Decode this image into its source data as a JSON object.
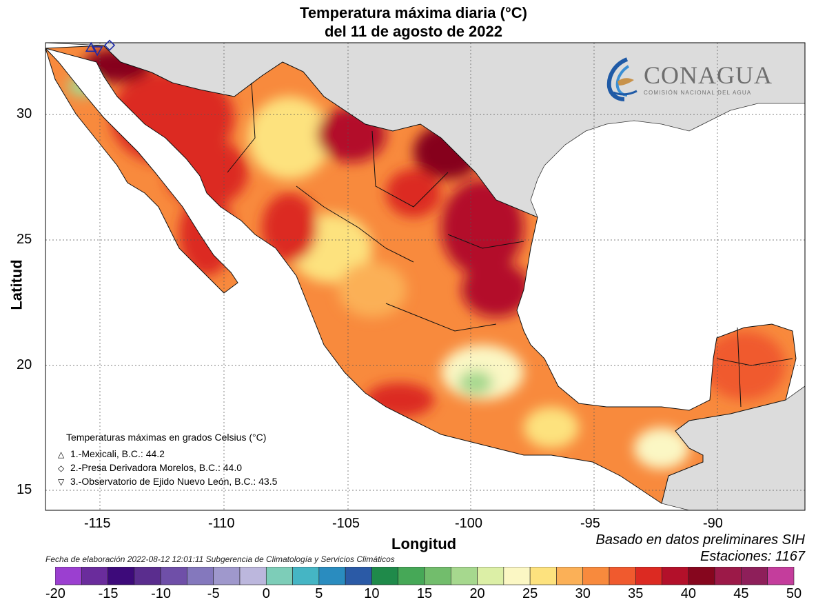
{
  "title": {
    "line1": "Temperatura máxima diaria (°C)",
    "line2": "del 11 de agosto de 2022"
  },
  "axes": {
    "xlabel": "Longitud",
    "ylabel": "Latitud",
    "x_ticks": [
      "-115",
      "-110",
      "-105",
      "-100",
      "-95",
      "-90"
    ],
    "y_ticks": [
      "30",
      "25",
      "20",
      "15"
    ],
    "x_range": [
      -117.3,
      -86.5
    ],
    "y_range": [
      14.2,
      32.8
    ]
  },
  "logo": {
    "name": "CONAGUA",
    "subtitle": "COMISIÓN NACIONAL DEL AGUA"
  },
  "legend": {
    "title": "Temperaturas máximas en grados Celsius (°C)",
    "items": [
      {
        "symbol": "△",
        "text": "1.-Mexicali, B.C.: 44.2"
      },
      {
        "symbol": "◇",
        "text": "2.-Presa Derivadora Morelos, B.C.: 44.0"
      },
      {
        "symbol": "▽",
        "text": "3.-Observatorio de Ejido Nuevo León, B.C.: 43.5"
      }
    ]
  },
  "footer": {
    "fecha": "Fecha de elaboración 2022-08-12 12:01:11 Subgerencia de Climatología y Servicios Climáticos",
    "basado": "Basado en datos preliminares SIH",
    "estaciones": "Estaciones:  1167"
  },
  "colorbar": {
    "labels": [
      "-20",
      "-15",
      "-10",
      "-5",
      "0",
      "5",
      "10",
      "15",
      "20",
      "25",
      "30",
      "35",
      "40",
      "45",
      "50"
    ],
    "colors": [
      "#9b3fd0",
      "#6a2c9c",
      "#3d0a7a",
      "#5a2d8e",
      "#6f4fa8",
      "#8478bd",
      "#9f98cc",
      "#bcb7dd",
      "#7dcdb8",
      "#45b5c4",
      "#2a8cbf",
      "#2b5aa6",
      "#1f8a4a",
      "#46a857",
      "#72bd6c",
      "#a6d88e",
      "#dcefa6",
      "#fbf7c4",
      "#fde27e",
      "#fbb057",
      "#f88a3d",
      "#f05a2e",
      "#dc2a22",
      "#b3102a",
      "#86061e",
      "#9c1948",
      "#8e1f5a",
      "#c43d9c"
    ]
  },
  "chart_data": {
    "type": "heatmap",
    "title": "Temperatura máxima diaria (°C) del 11 de agosto de 2022",
    "xlabel": "Longitud",
    "ylabel": "Latitud",
    "xlim": [
      -117.3,
      -86.5
    ],
    "ylim": [
      14.2,
      32.8
    ],
    "value_range": [
      -20,
      50
    ],
    "stations": [
      {
        "name": "Mexicali, B.C.",
        "value": 44.2,
        "lon": -115.45,
        "lat": 32.6
      },
      {
        "name": "Presa Derivadora Morelos, B.C.",
        "value": 44.0,
        "lon": -114.7,
        "lat": 32.7
      },
      {
        "name": "Observatorio de Ejido Nuevo León, B.C.",
        "value": 43.5,
        "lon": -115.2,
        "lat": 32.5
      }
    ]
  }
}
